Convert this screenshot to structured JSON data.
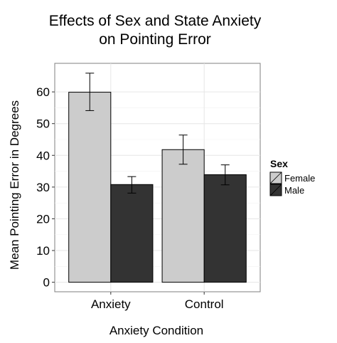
{
  "chart_data": {
    "type": "bar",
    "title_lines": [
      "Effects of Sex and State Anxiety",
      "on Pointing Error"
    ],
    "xlabel": "Anxiety Condition",
    "ylabel": "Mean Pointing Error in Degrees",
    "categories": [
      "Anxiety",
      "Control"
    ],
    "ylim": [
      -3,
      69
    ],
    "yticks": [
      0,
      10,
      20,
      30,
      40,
      50,
      60
    ],
    "grid": true,
    "legend_title": "Sex",
    "legend_position": "right",
    "series": [
      {
        "name": "Female",
        "color": "#cccccc",
        "values": [
          59.9,
          41.8
        ],
        "error_low": [
          54.1,
          37.2
        ],
        "error_high": [
          65.9,
          46.4
        ]
      },
      {
        "name": "Male",
        "color": "#333333",
        "values": [
          30.8,
          33.9
        ],
        "error_low": [
          28.1,
          30.7
        ],
        "error_high": [
          33.3,
          37.0
        ]
      }
    ]
  }
}
